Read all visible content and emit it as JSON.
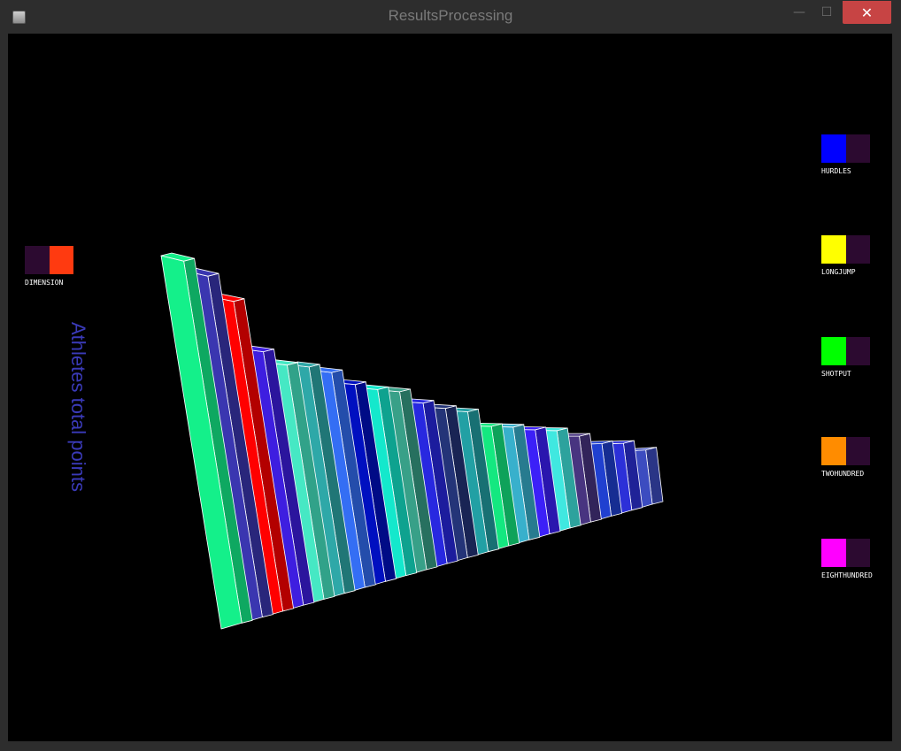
{
  "window": {
    "title": "ResultsProcessing",
    "minimize_glyph": "—",
    "maximize_glyph": "☐",
    "close_glyph": "✕"
  },
  "dimension": {
    "label": "DIMENSION",
    "swatches": [
      "#2c0a30",
      "#ff3a10"
    ]
  },
  "legend": [
    {
      "label": "HURDLES",
      "swatches": [
        "#0000ff",
        "#2c0a30"
      ]
    },
    {
      "label": "LONGJUMP",
      "swatches": [
        "#ffff00",
        "#2c0a30"
      ]
    },
    {
      "label": "SHOTPUT",
      "swatches": [
        "#00ff00",
        "#2c0a30"
      ]
    },
    {
      "label": "TWOHUNDRED",
      "swatches": [
        "#ff8c00",
        "#2c0a30"
      ]
    },
    {
      "label": "EIGHTHUNDRED",
      "swatches": [
        "#ff00ff",
        "#2c0a30"
      ]
    }
  ],
  "axis_title": "Athletes total points",
  "chart_data": {
    "type": "bar",
    "title": "",
    "ylabel": "Athletes total points",
    "values": [
      1.0,
      0.973,
      0.914,
      0.774,
      0.741,
      0.743,
      0.733,
      0.699,
      0.688,
      0.687,
      0.649,
      0.633,
      0.624,
      0.561,
      0.56,
      0.548,
      0.545,
      0.514,
      0.466,
      0.464,
      0.409
    ],
    "colors": [
      "#14f08a",
      "#3a36b0",
      "#ff0000",
      "#3e1ee0",
      "#46e8c4",
      "#2ea8a8",
      "#346ef4",
      "#0010c0",
      "#14e8cc",
      "#38a088",
      "#2828e0",
      "#243478",
      "#22a0a4",
      "#14e880",
      "#38b0cc",
      "#3c20f8",
      "#40e8e0",
      "#483480",
      "#2040d0",
      "#2c30d8",
      "#3c4cc0"
    ]
  }
}
